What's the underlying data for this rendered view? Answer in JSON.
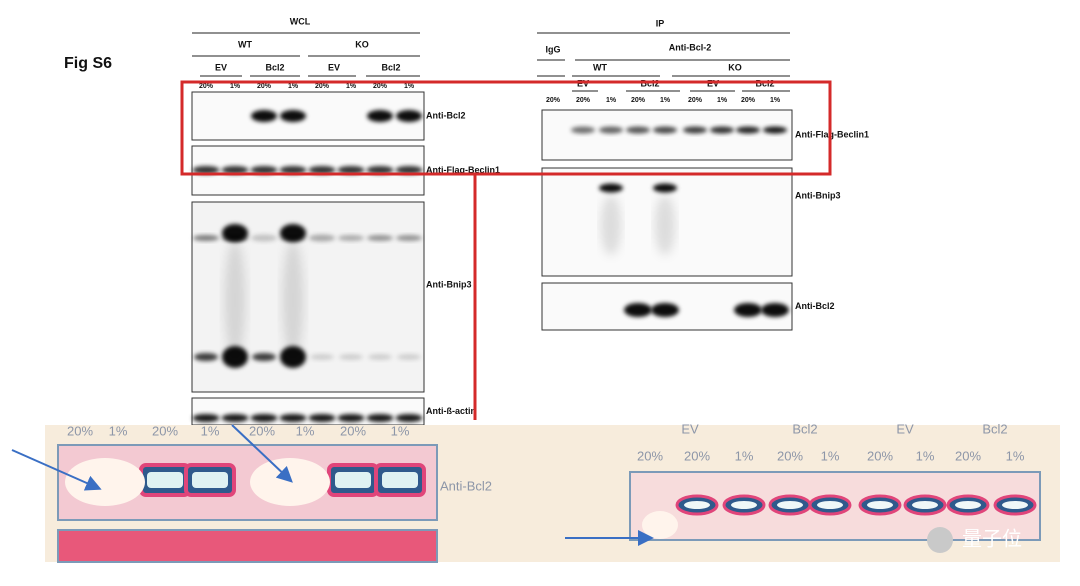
{
  "figure_label": "Fig S6",
  "wcl": {
    "title": "WCL",
    "groups": [
      "WT",
      "KO"
    ],
    "subgroups": [
      "EV",
      "Bcl2",
      "EV",
      "Bcl2"
    ],
    "lanes": [
      "20%",
      "1%",
      "20%",
      "1%",
      "20%",
      "1%",
      "20%",
      "1%"
    ],
    "blots": [
      "Anti-Bcl2",
      "Anti-Flag-Beclin1",
      "Anti-Bnip3",
      "Anti-ß-actin"
    ]
  },
  "ip": {
    "title": "IP",
    "control": "IgG",
    "antibody": "Anti-Bcl-2",
    "groups": [
      "WT",
      "KO"
    ],
    "subgroups": [
      "EV",
      "Bcl2",
      "EV",
      "Bcl2"
    ],
    "lanes": [
      "20%",
      "20%",
      "1%",
      "20%",
      "1%",
      "20%",
      "1%",
      "20%",
      "1%"
    ],
    "blots": [
      "Anti-Flag-Beclin1",
      "Anti-Bnip3",
      "Anti-Bcl2"
    ]
  },
  "zoom_left": {
    "lanes": [
      "20%",
      "1%",
      "20%",
      "1%",
      "20%",
      "1%",
      "20%",
      "1%"
    ],
    "label": "Anti-Bcl2"
  },
  "zoom_right": {
    "subgroups": [
      "EV",
      "Bcl2",
      "EV",
      "Bcl2"
    ],
    "lanes": [
      "20%",
      "20%",
      "1%",
      "20%",
      "1%",
      "20%",
      "1%",
      "20%",
      "1%"
    ]
  },
  "watermark": "量子位"
}
